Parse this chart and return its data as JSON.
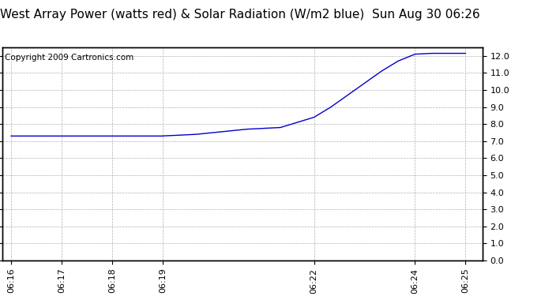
{
  "title": "West Array Power (watts red) & Solar Radiation (W/m2 blue)  Sun Aug 30 06:26",
  "copyright": "Copyright 2009 Cartronics.com",
  "line_color": "#0000cc",
  "background_color": "#ffffff",
  "plot_bg_color": "#ffffff",
  "grid_color": "#b0b0b0",
  "ylim": [
    0.0,
    12.5
  ],
  "yticks": [
    0.0,
    1.0,
    2.0,
    3.0,
    4.0,
    5.0,
    6.0,
    7.0,
    8.0,
    9.0,
    10.0,
    11.0,
    12.0
  ],
  "xtick_positions": [
    0,
    60,
    120,
    180,
    360,
    480,
    540
  ],
  "xtick_labels": [
    "06:16",
    "06:17",
    "06:18",
    "06:19",
    "06:22",
    "06:24",
    "06:25"
  ],
  "xlim": [
    -10,
    560
  ],
  "x_data": [
    0,
    60,
    120,
    180,
    182,
    200,
    220,
    240,
    260,
    280,
    300,
    320,
    340,
    360,
    380,
    400,
    420,
    440,
    460,
    480,
    500,
    520,
    540
  ],
  "y_data": [
    7.3,
    7.3,
    7.3,
    7.3,
    7.31,
    7.35,
    7.4,
    7.5,
    7.6,
    7.7,
    7.75,
    7.8,
    8.1,
    8.4,
    9.0,
    9.7,
    10.4,
    11.1,
    11.7,
    12.1,
    12.15,
    12.15,
    12.15
  ],
  "title_fontsize": 11,
  "tick_fontsize": 8,
  "copyright_fontsize": 7.5
}
